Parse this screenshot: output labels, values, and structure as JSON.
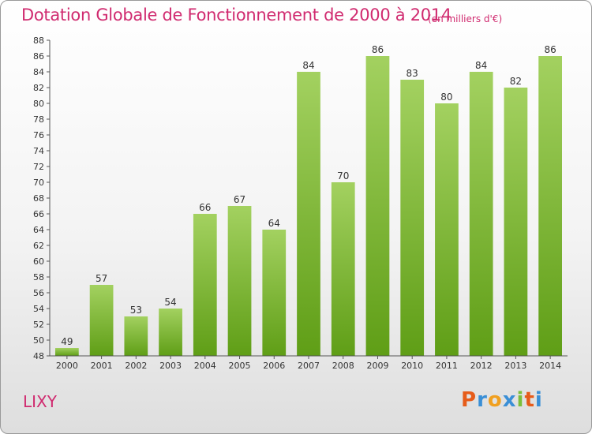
{
  "chart_data": {
    "type": "bar",
    "title": "Dotation Globale de Fonctionnement de 2000 à 2014",
    "subtitle": "(en milliers d'€)",
    "categories": [
      "2000",
      "2001",
      "2002",
      "2003",
      "2004",
      "2005",
      "2006",
      "2007",
      "2008",
      "2009",
      "2010",
      "2011",
      "2012",
      "2013",
      "2014"
    ],
    "values": [
      49,
      57,
      53,
      54,
      66,
      67,
      64,
      84,
      70,
      86,
      83,
      80,
      84,
      82,
      86
    ],
    "ylim": [
      48,
      88
    ],
    "ytick_step": 2,
    "xlabel": "",
    "ylabel": "",
    "grid": false,
    "bar_color": "#8bc34a"
  },
  "footer": {
    "commune": "LIXY",
    "brand_letters": [
      "P",
      "r",
      "o",
      "x",
      "i",
      "t",
      "i"
    ],
    "brand_colors": [
      "#e65c1a",
      "#3a8fd6",
      "#f0a020",
      "#3a8fd6",
      "#7bbf3a",
      "#e65c1a",
      "#3a8fd6"
    ]
  }
}
